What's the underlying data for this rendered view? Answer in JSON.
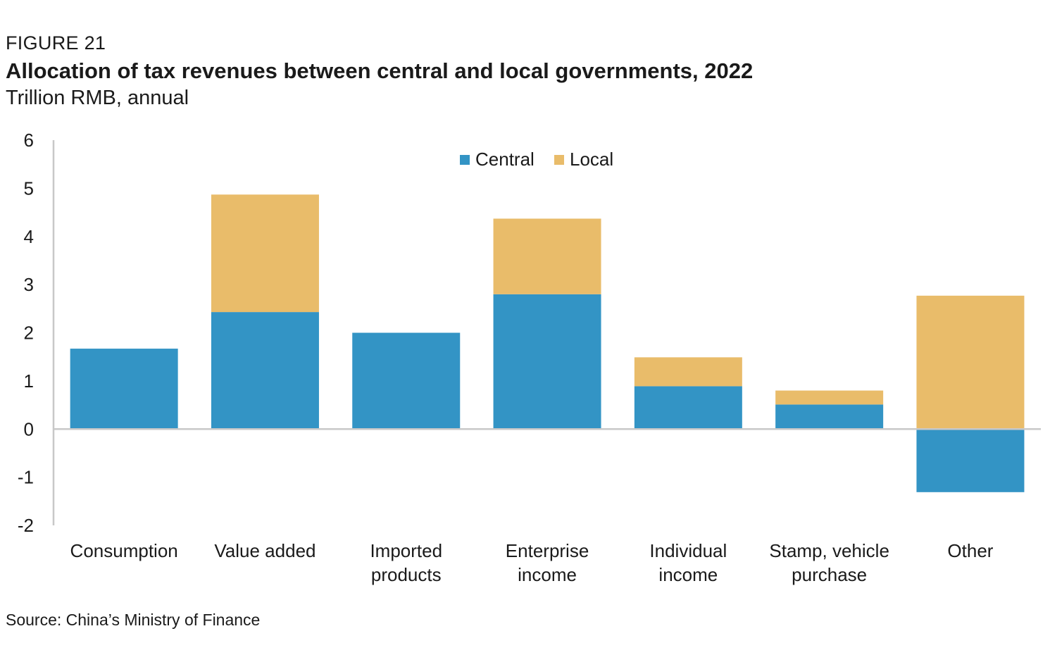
{
  "figure_label": "FIGURE 21",
  "source": "Source: China’s Ministry of Finance",
  "colors": {
    "central": "#3394c5",
    "local": "#e9bc6a",
    "axis": "#c8c8c8"
  },
  "chart_data": {
    "type": "bar",
    "stacked": true,
    "title": "Allocation of tax revenues between central and local governments, 2022",
    "subtitle": "Trillion RMB, annual",
    "categories": [
      [
        "Consumption"
      ],
      [
        "Value added"
      ],
      [
        "Imported",
        "products"
      ],
      [
        "Enterprise",
        "income"
      ],
      [
        "Individual",
        "income"
      ],
      [
        "Stamp, vehicle",
        "purchase"
      ],
      [
        "Other"
      ]
    ],
    "series": [
      {
        "name": "Central",
        "values": [
          1.67,
          2.43,
          2.0,
          2.8,
          0.89,
          0.51,
          -1.31
        ]
      },
      {
        "name": "Local",
        "values": [
          0.0,
          2.44,
          0.0,
          1.57,
          0.6,
          0.29,
          2.77
        ]
      }
    ],
    "ylim": [
      -2,
      6
    ],
    "yticks": [
      -2,
      -1,
      0,
      1,
      2,
      3,
      4,
      5,
      6
    ],
    "legend_position": "top-center",
    "grid": false
  }
}
